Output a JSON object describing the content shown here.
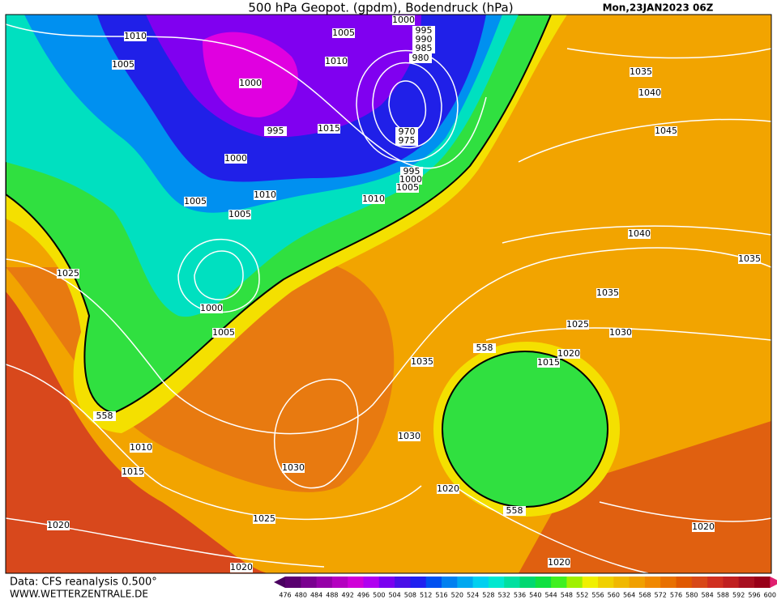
{
  "map": {
    "title": "500 hPa Geopot. (gpdm), Bodendruck (hPa)",
    "date": "Mon,23JAN2023 06Z",
    "source": "Data: CFS reanalysis 0.500°",
    "website": "WWW.WETTERZENTRALE.DE",
    "isobar_labels": [
      "1010",
      "1005",
      "1000",
      "995",
      "1000",
      "1005",
      "1010",
      "1005",
      "1005",
      "1010",
      "1015",
      "1000",
      "995",
      "990",
      "985",
      "980",
      "970",
      "975",
      "995",
      "1000",
      "1005",
      "1010",
      "1035",
      "1040",
      "1045",
      "1040",
      "1035",
      "1035",
      "1025",
      "1030",
      "1020",
      "1015",
      "558",
      "1035",
      "1025",
      "1000",
      "1005",
      "558",
      "1010",
      "1015",
      "1030",
      "1030",
      "1020",
      "558",
      "1025",
      "1020",
      "1020",
      "1020",
      "1020"
    ],
    "colorbar": {
      "values": [
        476,
        480,
        484,
        488,
        492,
        496,
        500,
        504,
        508,
        512,
        516,
        520,
        524,
        528,
        532,
        536,
        540,
        544,
        548,
        552,
        556,
        560,
        564,
        568,
        572,
        576,
        580,
        584,
        588,
        592,
        596,
        600
      ],
      "colors": [
        "#5a0070",
        "#7a0090",
        "#9600a8",
        "#b400c0",
        "#d000d8",
        "#b000f0",
        "#7a00f0",
        "#4a10e8",
        "#2020f0",
        "#0050f0",
        "#0080f0",
        "#00a8f0",
        "#00d0f0",
        "#00e8d0",
        "#00e0a0",
        "#00d870",
        "#10e040",
        "#40f020",
        "#a0f000",
        "#f0f000",
        "#f0d000",
        "#f0b800",
        "#f0a000",
        "#f08800",
        "#e87000",
        "#e05800",
        "#d84818",
        "#d03020",
        "#c02020",
        "#a81020",
        "#980018"
      ]
    }
  }
}
